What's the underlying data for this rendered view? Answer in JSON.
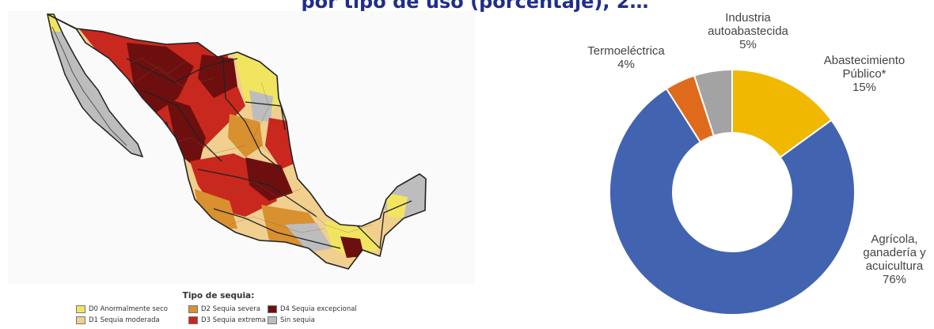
{
  "page": {
    "title_fragment": "por tipo de uso (porcentaje), 2…"
  },
  "map": {
    "legend_title": "Tipo de sequia:",
    "legend_items": [
      {
        "label": "D0 Anormalmente seco",
        "color": "#f1e55f"
      },
      {
        "label": "D1 Sequia moderada",
        "color": "#f0cf8f"
      },
      {
        "label": "D2 Sequia severa",
        "color": "#d9902f"
      },
      {
        "label": "D3 Sequia extrema",
        "color": "#c8281e"
      },
      {
        "label": "D4 Sequia excepcional",
        "color": "#6e0f0f"
      },
      {
        "label": "Sin sequia",
        "color": "#bdbdbd"
      }
    ]
  },
  "chart_data": {
    "type": "pie",
    "variant": "donut",
    "slices": [
      {
        "name": "Abastecimiento Público*",
        "value": 15,
        "label": "15%",
        "color": "#f0b800"
      },
      {
        "name": "Agrícola, ganadería y acuicultura",
        "value": 76,
        "label": "76%",
        "color": "#4263b0"
      },
      {
        "name": "Termoeléctrica",
        "value": 4,
        "label": "4%",
        "color": "#e06a1b"
      },
      {
        "name": "Industria autoabastecida",
        "value": 5,
        "label": "5%",
        "color": "#a3a3a3"
      }
    ],
    "labels": {
      "termo": {
        "lines": [
          "Termoeléctrica",
          "4%"
        ]
      },
      "industria": {
        "lines": [
          "Industria",
          "autoabastecida",
          "5%"
        ]
      },
      "publico": {
        "lines": [
          "Abastecimiento",
          "Público*",
          "15%"
        ]
      },
      "agricola": {
        "lines": [
          "Agrícola,",
          "ganadería y",
          "acuicultura",
          "76%"
        ]
      }
    }
  }
}
